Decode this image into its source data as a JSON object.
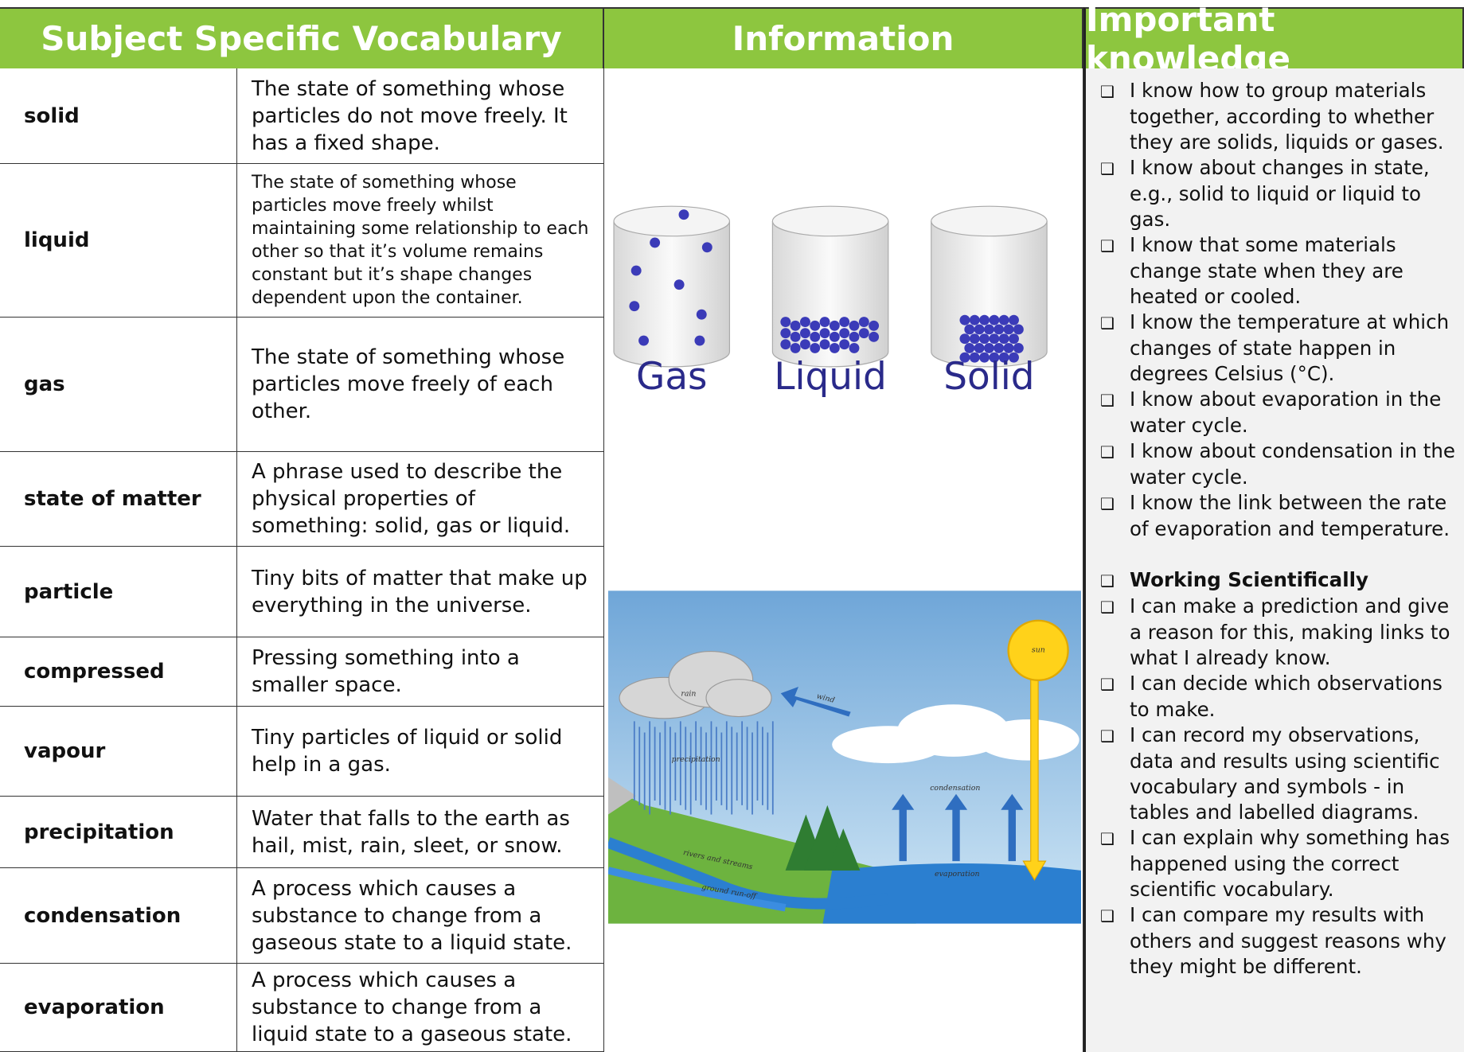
{
  "header": {
    "vocabulary": "Subject Specific Vocabulary",
    "information": "Information",
    "knowledge": "Important knowledge"
  },
  "vocabulary": [
    {
      "term": "solid",
      "definition": "The state of something whose particles do not move freely. It has a fixed shape."
    },
    {
      "term": "liquid",
      "definition": "The state of something whose particles move freely whilst maintaining some relationship to each other so that it’s volume remains constant but it’s shape changes dependent upon the container."
    },
    {
      "term": "gas",
      "definition": "The state of something whose particles move freely of each other."
    },
    {
      "term": "state of matter",
      "definition": "A phrase used to describe the physical properties of something: solid, gas or liquid."
    },
    {
      "term": "particle",
      "definition": "Tiny bits of matter that make up everything in the universe."
    },
    {
      "term": "compressed",
      "definition": "Pressing something into a smaller space."
    },
    {
      "term": "vapour",
      "definition": "Tiny particles of liquid or solid help in a gas."
    },
    {
      "term": "precipitation",
      "definition": "Water that falls to the earth as hail, mist, rain, sleet, or snow."
    },
    {
      "term": "condensation",
      "definition": "A process which causes a substance to change from a gaseous state to a liquid state."
    },
    {
      "term": "evaporation",
      "definition": "A process which causes a substance to change from a liquid state to a gaseous state."
    }
  ],
  "states_diagram": {
    "labels": [
      "Gas",
      "Liquid",
      "Solid"
    ]
  },
  "water_cycle": {
    "rain": "rain",
    "wind": "wind",
    "sun": "sun",
    "precipitation": "precipitation",
    "condensation": "condensation",
    "evaporation": "evaporation",
    "rivers": "rivers and streams",
    "runoff": "ground run-off"
  },
  "knowledge": {
    "items": [
      "I know how to group materials together, according to whether they are solids, liquids or gases.",
      "I know about changes in state, e.g., solid to liquid or liquid to gas.",
      "I know that some materials change state when they are heated or cooled.",
      "I know the temperature at which changes of state happen in degrees Celsius (°C).",
      "I know about evaporation in the water cycle.",
      "I know about condensation in the water cycle.",
      "I know the link between the rate of evaporation and temperature."
    ],
    "working_title": "Working Scientifically",
    "working_items": [
      "I can make a prediction and give a reason for this, making links to what I already know.",
      "I can decide which observations to make.",
      "I can record my observations, data and results using scientific vocabulary and symbols - in tables and labelled diagrams.",
      "I can explain why something has happened using the correct scientific vocabulary.",
      "I can compare my results with others and suggest reasons why they might be different."
    ]
  }
}
